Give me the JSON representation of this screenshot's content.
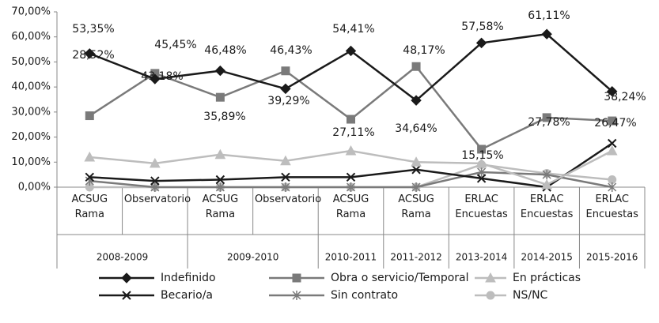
{
  "chart_data": {
    "type": "line",
    "categories": [
      "ACSUG Rama",
      "Observatorio",
      "ACSUG Rama",
      "Observatorio",
      "ACSUG Rama",
      "ACSUG Rama",
      "ERLAC Encuestas",
      "ERLAC Encuestas",
      "ERLAC Encuestas"
    ],
    "groups": [
      {
        "label": "2008-2009",
        "span": 2
      },
      {
        "label": "2009-2010",
        "span": 2
      },
      {
        "label": "2010-2011",
        "span": 1
      },
      {
        "label": "2011-2012",
        "span": 1
      },
      {
        "label": "2013-2014",
        "span": 1
      },
      {
        "label": "2014-2015",
        "span": 1
      },
      {
        "label": "2015-2016",
        "span": 1
      }
    ],
    "ylim": [
      0,
      70
    ],
    "yticks": [
      {
        "value": 0,
        "label": "0,00%"
      },
      {
        "value": 10,
        "label": "10,00%"
      },
      {
        "value": 20,
        "label": "20,00%"
      },
      {
        "value": 30,
        "label": "30,00%"
      },
      {
        "value": 40,
        "label": "40,00%"
      },
      {
        "value": 50,
        "label": "50,00%"
      },
      {
        "value": 60,
        "label": "60,00%"
      },
      {
        "value": 70,
        "label": "70,00%"
      }
    ],
    "series": [
      {
        "name": "Indefinido",
        "color": "#1a1a1a",
        "marker": "diamond",
        "values": [
          53.35,
          43.18,
          46.48,
          39.29,
          54.41,
          34.64,
          57.58,
          61.11,
          38.24
        ],
        "value_labels": [
          "53,35%",
          "43,18%",
          "46,48%",
          "39,29%",
          "54,41%",
          "34,64%",
          "57,58%",
          "61,11%",
          "38,24%"
        ]
      },
      {
        "name": "Obra o servicio/Temporal",
        "color": "#7a7a7a",
        "marker": "square",
        "values": [
          28.52,
          45.45,
          35.89,
          46.43,
          27.11,
          48.17,
          15.15,
          27.78,
          26.47
        ],
        "value_labels": [
          "28,52%",
          "45,45%",
          "35,89%",
          "46,43%",
          "27,11%",
          "48,17%",
          "15,15%",
          "27,78%",
          "26,47%"
        ]
      },
      {
        "name": "En prácticas",
        "color": "#bdbdbd",
        "marker": "triangle",
        "values": [
          12,
          9.5,
          13,
          10.5,
          14.5,
          10,
          9.5,
          1,
          14.5
        ]
      },
      {
        "name": "Becario/a",
        "color": "#1a1a1a",
        "marker": "x",
        "values": [
          4,
          2.5,
          3,
          4,
          4,
          7,
          3.5,
          0,
          17.5
        ]
      },
      {
        "name": "Sin contrato",
        "color": "#7a7a7a",
        "marker": "star",
        "values": [
          2.5,
          0,
          0,
          0,
          0,
          0,
          6,
          5,
          0
        ]
      },
      {
        "name": "NS/NC",
        "color": "#bdbdbd",
        "marker": "circle",
        "values": [
          0,
          0,
          0,
          0,
          0,
          0,
          9,
          5.5,
          3
        ]
      }
    ]
  }
}
